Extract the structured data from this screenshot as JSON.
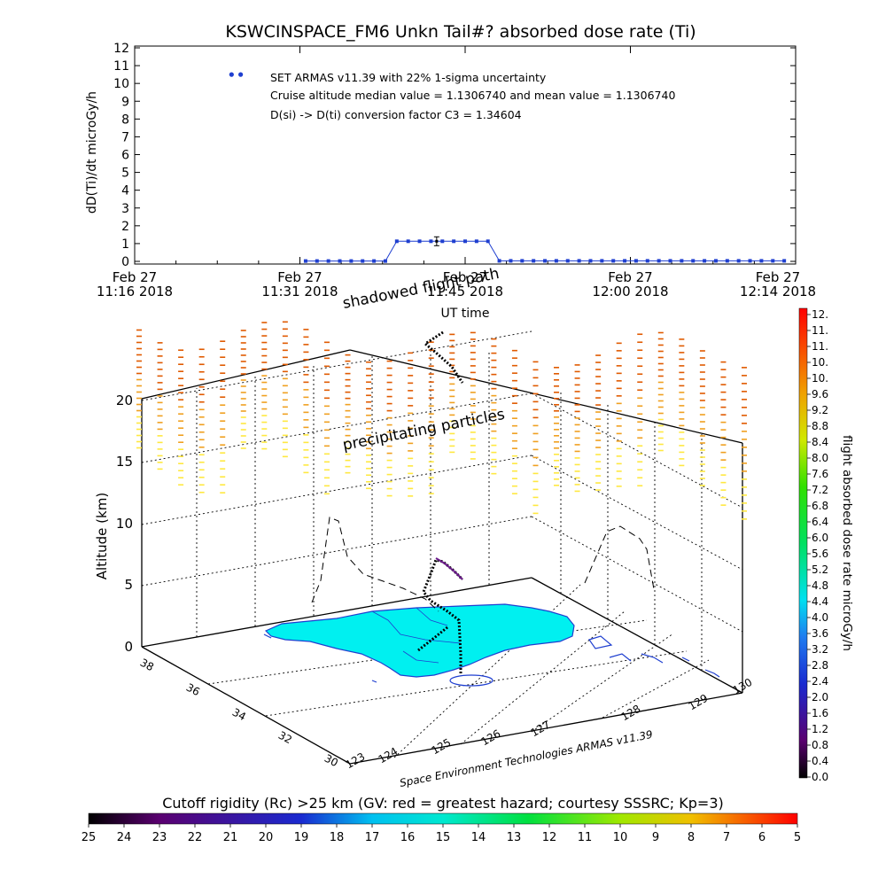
{
  "title": "KSWCINSPACE_FM6 Unkn Tail#? absorbed dose rate (Ti)",
  "chart_data": [
    {
      "type": "line",
      "ylabel": "dD(Ti)/dt microGy/h",
      "xlabel": "UT time",
      "ylim": [
        0,
        12
      ],
      "y_ticks": [
        "0",
        "1",
        "2",
        "3",
        "4",
        "5",
        "6",
        "7",
        "8",
        "9",
        "10",
        "11",
        "12"
      ],
      "x_ticks": [
        {
          "date": "Feb 27",
          "time": "11:16 2018"
        },
        {
          "date": "Feb 27",
          "time": "11:31 2018"
        },
        {
          "date": "Feb 27",
          "time": "11:45 2018"
        },
        {
          "date": "Feb 27",
          "time": "12:00 2018"
        },
        {
          "date": "Feb 27",
          "time": "12:14 2018"
        }
      ],
      "xlim": [
        0,
        58
      ],
      "series": [
        {
          "x": [
            15,
            16,
            17,
            18,
            19,
            20,
            21,
            22,
            23,
            24,
            25,
            26,
            27,
            28,
            29,
            30,
            31,
            32,
            33,
            34,
            35,
            36,
            37,
            38,
            39,
            40,
            41,
            42,
            43,
            44,
            45,
            46,
            47,
            48,
            49,
            50,
            51,
            52,
            53,
            54,
            55,
            56,
            57
          ],
          "values": [
            0.02,
            0.02,
            0.02,
            0.02,
            0.02,
            0.02,
            0.02,
            0.02,
            1.13,
            1.13,
            1.13,
            1.13,
            1.13,
            1.13,
            1.13,
            1.13,
            1.13,
            0.03,
            0.03,
            0.03,
            0.03,
            0.03,
            0.03,
            0.03,
            0.03,
            0.03,
            0.03,
            0.03,
            0.03,
            0.03,
            0.03,
            0.03,
            0.03,
            0.03,
            0.03,
            0.03,
            0.03,
            0.03,
            0.03,
            0.03,
            0.03,
            0.03,
            0.03
          ]
        }
      ],
      "outliers": [
        {
          "x": 8.5,
          "y": 10.5
        },
        {
          "x": 9.3,
          "y": 10.5
        }
      ],
      "error_bar": {
        "x": 26.5,
        "y": 1.13,
        "low": 0.88,
        "high": 1.38
      },
      "annotations": [
        "SET ARMAS v11.39 with 22% 1-sigma uncertainty",
        "Cruise altitude median value = 1.1306740 and mean value = 1.1306740",
        "D(si) -> D(ti) conversion factor C3 = 1.34604"
      ]
    },
    {
      "type": "3d-surface",
      "zlabel": "Altitude (km)",
      "z_ticks": [
        "0",
        "5",
        "10",
        "15",
        "20"
      ],
      "lat_ticks": [
        "30",
        "32",
        "34",
        "36",
        "38"
      ],
      "lon_ticks": [
        "123",
        "124",
        "125",
        "126",
        "127",
        "128",
        "129",
        "130"
      ],
      "annotations": [
        "shadowed flight path",
        "precipitating particles"
      ],
      "credit": "Space Environment Technologies ARMAS v11.39"
    }
  ],
  "dose_colorbar": {
    "label": "flight absorbed dose rate microGy/h",
    "ticks": [
      "12.",
      "11.",
      "11.",
      "10.",
      "10.",
      "9.6",
      "9.2",
      "8.8",
      "8.4",
      "8.0",
      "7.6",
      "7.2",
      "6.8",
      "6.4",
      "6.0",
      "5.6",
      "5.2",
      "4.8",
      "4.4",
      "4.0",
      "3.6",
      "3.2",
      "2.8",
      "2.4",
      "2.0",
      "1.6",
      "1.2",
      "0.8",
      "0.4",
      "0.0"
    ]
  },
  "rigidity_colorbar": {
    "label": "Cutoff rigidity (Rc) >25 km (GV: red = greatest hazard; courtesy SSSRC; Kp=3)",
    "ticks": [
      "25",
      "24",
      "23",
      "22",
      "21",
      "20",
      "19",
      "18",
      "17",
      "16",
      "15",
      "14",
      "13",
      "12",
      "11",
      "10",
      "9",
      "8",
      "7",
      "6",
      "5"
    ]
  },
  "colors": {
    "series": "#1f3fd0",
    "land": "#00f0f0",
    "land_edge": "#1f3fd0",
    "particles_hi": "#e05a00",
    "particles_mid": "#f0a020",
    "particles_lo": "#ffe840"
  }
}
